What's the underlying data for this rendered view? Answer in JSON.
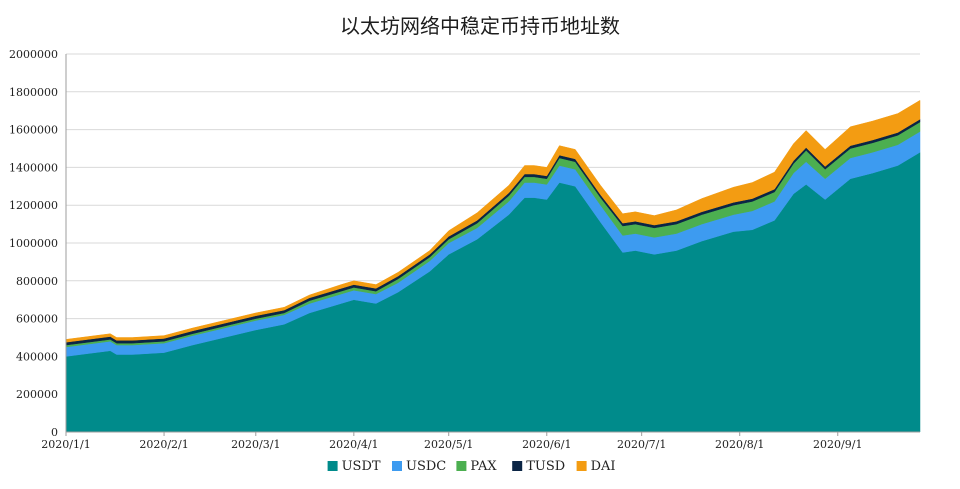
{
  "chart_data": {
    "type": "area",
    "stacked": true,
    "title": "以太坊网络中稳定币持币地址数",
    "xlabel": "",
    "ylabel": "",
    "ylim": [
      0,
      2000000
    ],
    "yticks": [
      0,
      200000,
      400000,
      600000,
      800000,
      1000000,
      1200000,
      1400000,
      1600000,
      1800000,
      2000000
    ],
    "ytick_labels": [
      "0",
      "200000",
      "400000",
      "600000",
      "800000",
      "1000000",
      "1200000",
      "1400000",
      "1600000",
      "1800000",
      "2000000"
    ],
    "xlim": [
      "2020/1/1",
      "2020/9/27"
    ],
    "xticks": [
      "2020/1/1",
      "2020/2/1",
      "2020/3/1",
      "2020/4/1",
      "2020/5/1",
      "2020/6/1",
      "2020/7/1",
      "2020/8/1",
      "2020/9/1"
    ],
    "grid": "horizontal",
    "legend_position": "bottom",
    "x": [
      "2020/1/1",
      "2020/1/8",
      "2020/1/15",
      "2020/1/17",
      "2020/1/22",
      "2020/2/1",
      "2020/2/10",
      "2020/2/20",
      "2020/3/1",
      "2020/3/10",
      "2020/3/18",
      "2020/3/28",
      "2020/4/1",
      "2020/4/8",
      "2020/4/15",
      "2020/4/25",
      "2020/5/1",
      "2020/5/10",
      "2020/5/20",
      "2020/5/25",
      "2020/5/28",
      "2020/6/1",
      "2020/6/5",
      "2020/6/10",
      "2020/6/18",
      "2020/6/25",
      "2020/6/29",
      "2020/7/5",
      "2020/7/12",
      "2020/7/20",
      "2020/7/30",
      "2020/8/5",
      "2020/8/12",
      "2020/8/18",
      "2020/8/22",
      "2020/8/28",
      "2020/9/5",
      "2020/9/12",
      "2020/9/20",
      "2020/9/27"
    ],
    "series": [
      {
        "name": "USDT",
        "color": "#008B8B",
        "values": [
          400000,
          415000,
          430000,
          410000,
          410000,
          420000,
          460000,
          500000,
          540000,
          570000,
          630000,
          680000,
          700000,
          680000,
          740000,
          850000,
          940000,
          1020000,
          1150000,
          1240000,
          1240000,
          1230000,
          1320000,
          1300000,
          1110000,
          950000,
          960000,
          940000,
          960000,
          1010000,
          1060000,
          1070000,
          1120000,
          1260000,
          1310000,
          1230000,
          1340000,
          1370000,
          1410000,
          1480000
        ]
      },
      {
        "name": "USDC",
        "color": "#3D9BF0",
        "values": [
          50000,
          50000,
          50000,
          50000,
          50000,
          50000,
          50000,
          50000,
          50000,
          50000,
          50000,
          50000,
          50000,
          50000,
          50000,
          55000,
          60000,
          60000,
          70000,
          80000,
          80000,
          80000,
          90000,
          90000,
          90000,
          90000,
          90000,
          90000,
          90000,
          90000,
          90000,
          100000,
          100000,
          110000,
          120000,
          110000,
          110000,
          110000,
          110000,
          110000
        ]
      },
      {
        "name": "PAX",
        "color": "#4CAF50",
        "values": [
          10000,
          10000,
          10000,
          10000,
          10000,
          10000,
          10000,
          10000,
          10000,
          10000,
          15000,
          15000,
          15000,
          15000,
          20000,
          20000,
          20000,
          25000,
          30000,
          30000,
          30000,
          30000,
          40000,
          40000,
          40000,
          50000,
          50000,
          50000,
          50000,
          50000,
          50000,
          50000,
          50000,
          50000,
          60000,
          50000,
          50000,
          50000,
          50000,
          50000
        ]
      },
      {
        "name": "TUSD",
        "color": "#0B2545",
        "values": [
          15000,
          15000,
          15000,
          15000,
          15000,
          15000,
          15000,
          15000,
          15000,
          15000,
          15000,
          15000,
          15000,
          15000,
          15000,
          15000,
          15000,
          15000,
          15000,
          15000,
          15000,
          15000,
          15000,
          15000,
          15000,
          15000,
          15000,
          15000,
          15000,
          15000,
          15000,
          15000,
          15000,
          15000,
          15000,
          15000,
          15000,
          15000,
          15000,
          15000
        ]
      },
      {
        "name": "DAI",
        "color": "#F39C12",
        "values": [
          15000,
          15000,
          15000,
          15000,
          15000,
          15000,
          15000,
          15000,
          15000,
          15000,
          15000,
          20000,
          20000,
          20000,
          20000,
          20000,
          30000,
          40000,
          40000,
          45000,
          45000,
          45000,
          50000,
          50000,
          50000,
          50000,
          50000,
          50000,
          60000,
          70000,
          80000,
          85000,
          90000,
          90000,
          90000,
          90000,
          100000,
          100000,
          100000,
          100000
        ]
      }
    ]
  }
}
